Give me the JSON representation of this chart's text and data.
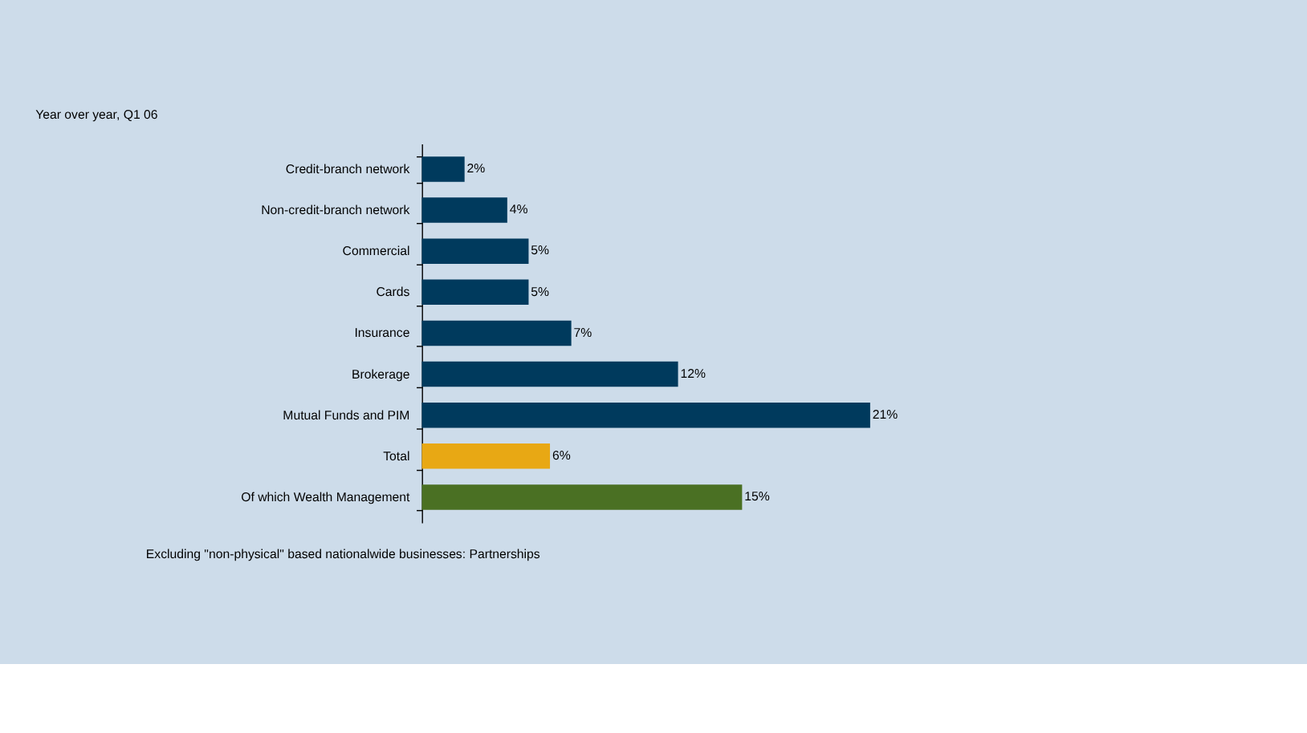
{
  "chart_data": {
    "type": "bar",
    "orientation": "horizontal",
    "title": "Year over year, Q1 06",
    "categories": [
      "Credit-branch network",
      "Non-credit-branch network",
      "Commercial",
      "Cards",
      "Insurance",
      "Brokerage",
      "Mutual Funds and PIM",
      "Total",
      "Of which Wealth Management"
    ],
    "values": [
      2,
      4,
      5,
      5,
      7,
      12,
      21,
      6,
      15
    ],
    "value_labels": [
      "2%",
      "4%",
      "5%",
      "5%",
      "7%",
      "12%",
      "21%",
      "6%",
      "15%"
    ],
    "colors": [
      "#003a5d",
      "#003a5d",
      "#003a5d",
      "#003a5d",
      "#003a5d",
      "#003a5d",
      "#003a5d",
      "#e8a814",
      "#4a7023"
    ],
    "tick_labels": "y",
    "legend": false,
    "annotations": [
      "Excluding \"non-physical\" based nationalwide businesses: Partnerships"
    ]
  }
}
